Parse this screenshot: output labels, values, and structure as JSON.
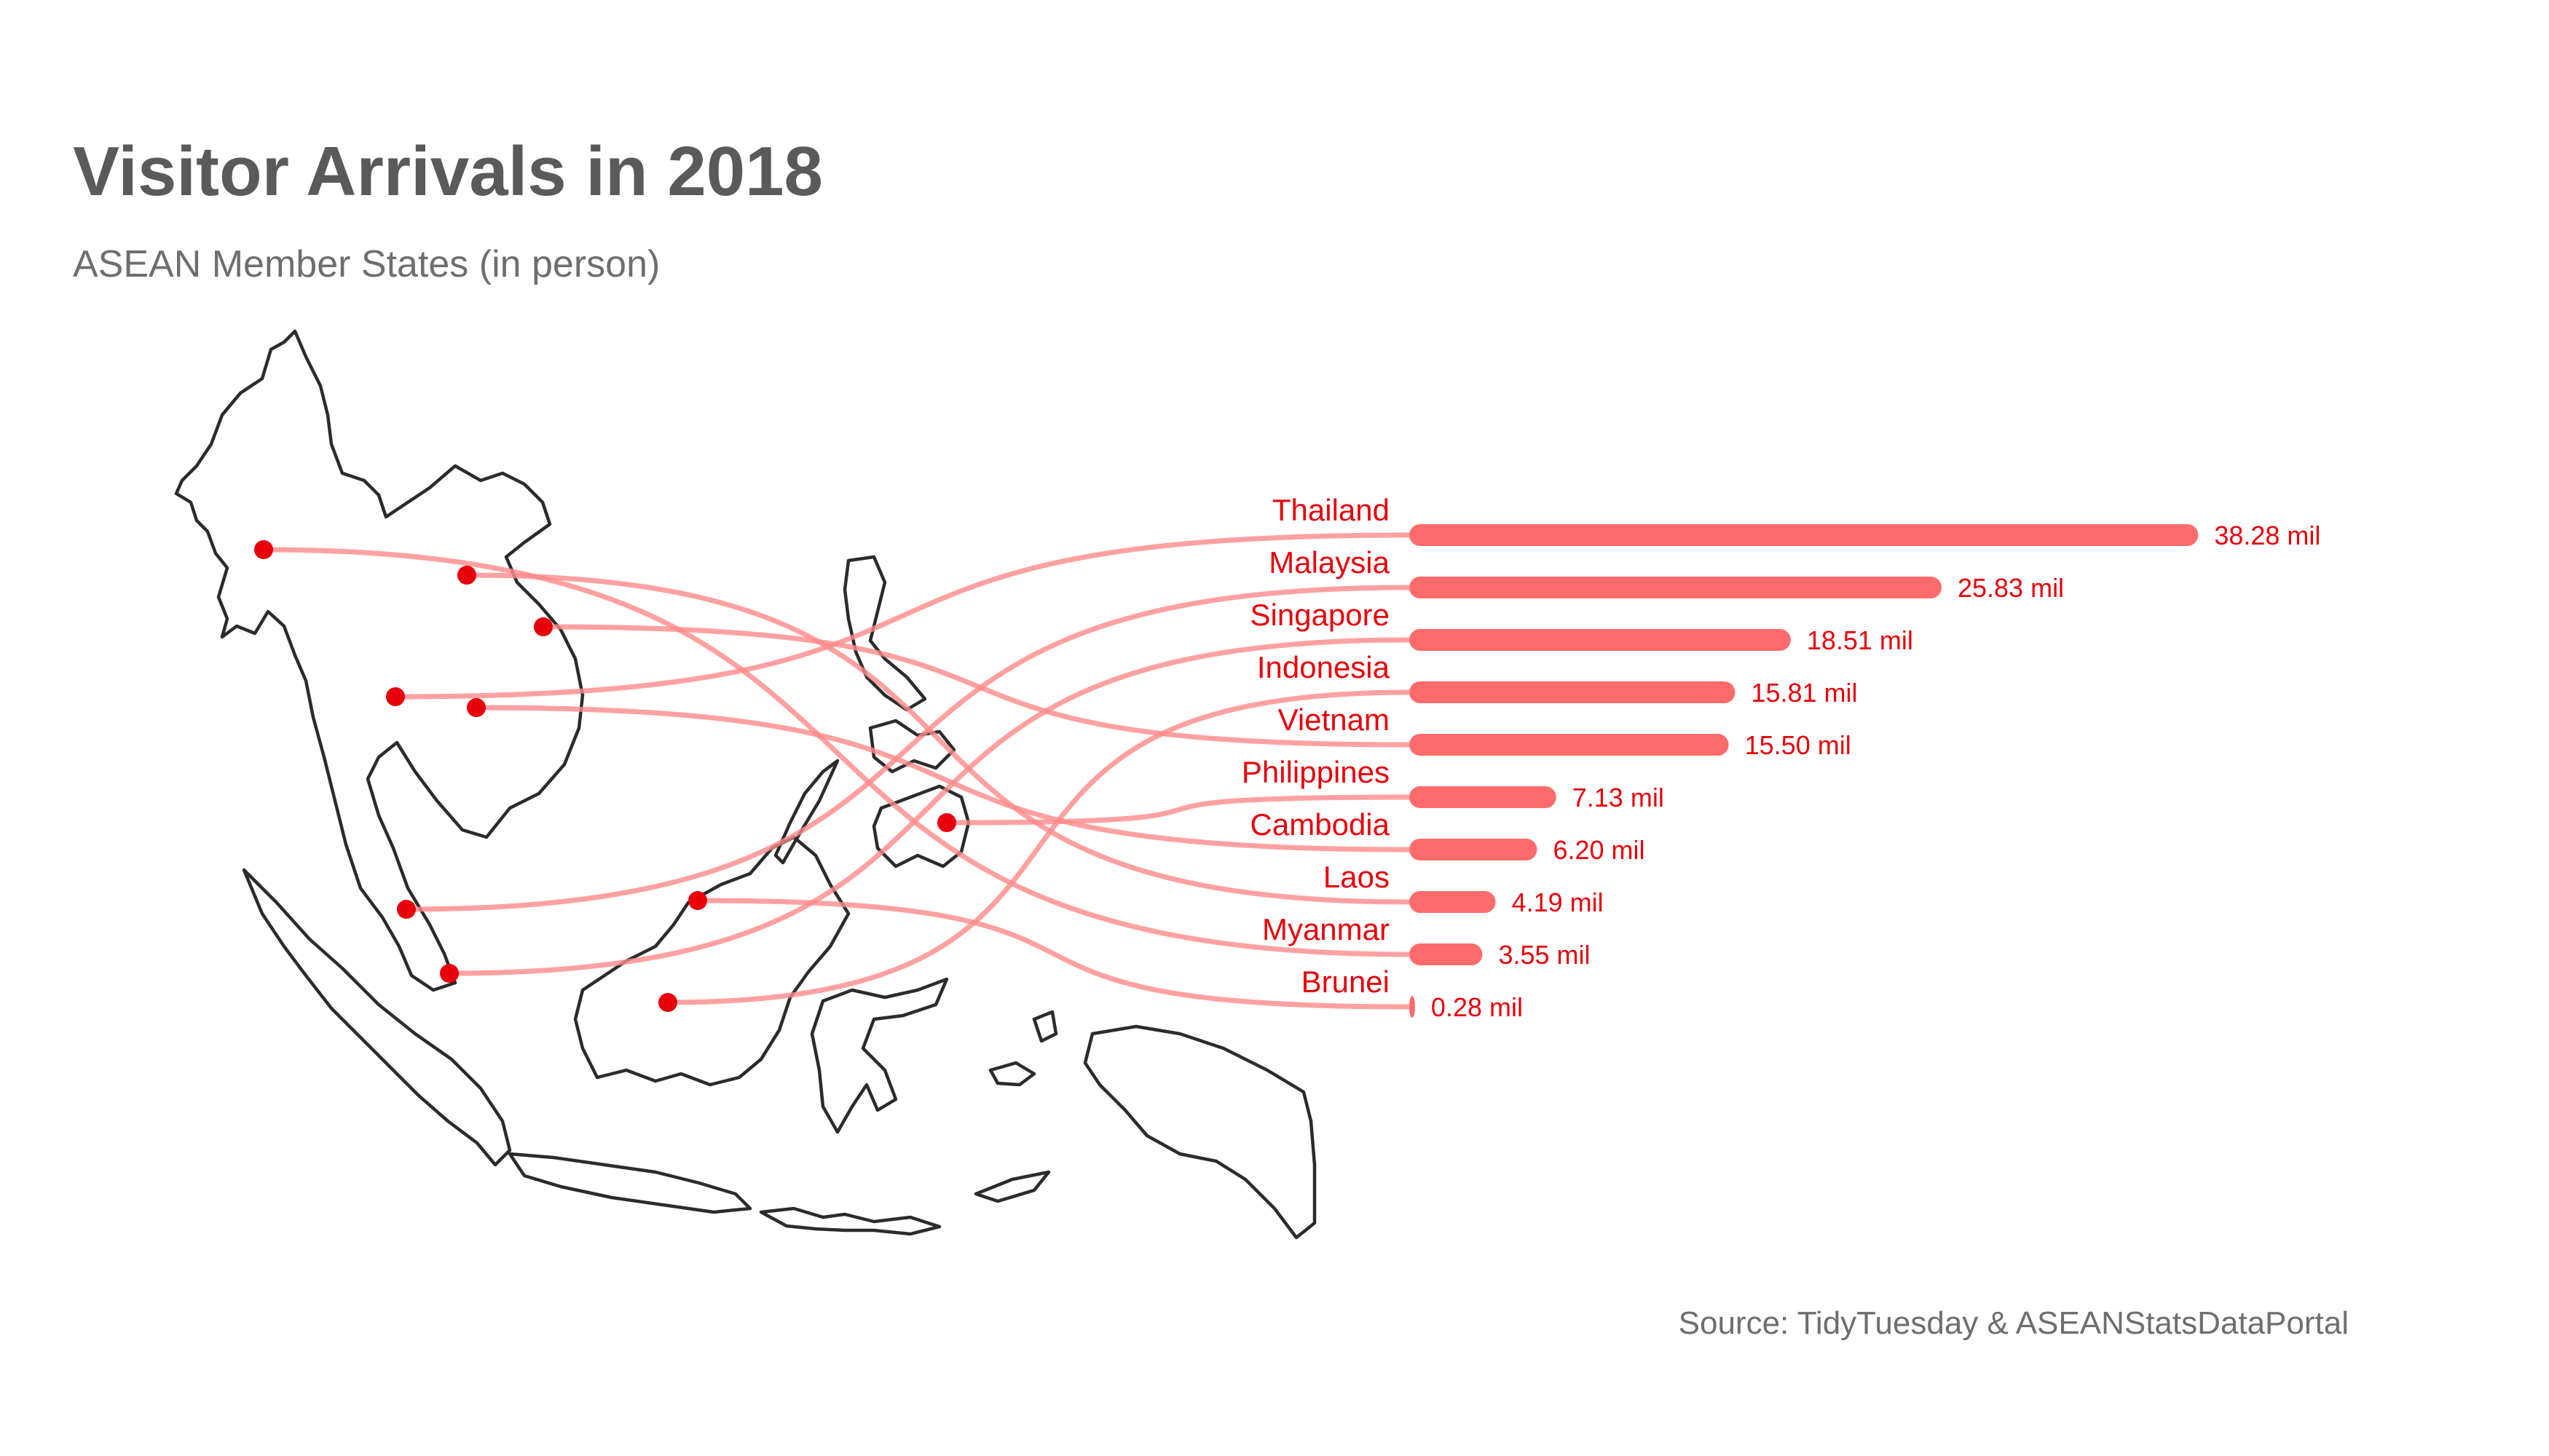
{
  "title": "Visitor Arrivals in 2018",
  "subtitle": "ASEAN Member States (in person)",
  "source": "Source: TidyTuesday & ASEANStatsDataPortal",
  "colors": {
    "bar": "#ff6b6b",
    "accent": "#e8000b",
    "connector": "#ff8a8a",
    "text": "#5a5a5a",
    "map_outline": "#2b2b2b"
  },
  "chart_data": {
    "type": "bar",
    "orientation": "horizontal",
    "title": "Visitor Arrivals in 2018",
    "subtitle": "ASEAN Member States (in person)",
    "categories": [
      "Thailand",
      "Malaysia",
      "Singapore",
      "Indonesia",
      "Vietnam",
      "Philippines",
      "Cambodia",
      "Laos",
      "Myanmar",
      "Brunei"
    ],
    "values": [
      38.28,
      25.83,
      18.51,
      15.81,
      15.5,
      7.13,
      6.2,
      4.19,
      3.55,
      0.28
    ],
    "value_labels": [
      "38.28 mil",
      "25.83 mil",
      "18.51 mil",
      "15.81 mil",
      "15.50 mil",
      "7.13 mil",
      "6.20 mil",
      "4.19 mil",
      "3.55 mil",
      "0.28 mil"
    ],
    "unit": "mil",
    "xlim": [
      0,
      40
    ],
    "grid": false,
    "map": "Southeast Asia coastline with a point for each country linked to its bar"
  }
}
